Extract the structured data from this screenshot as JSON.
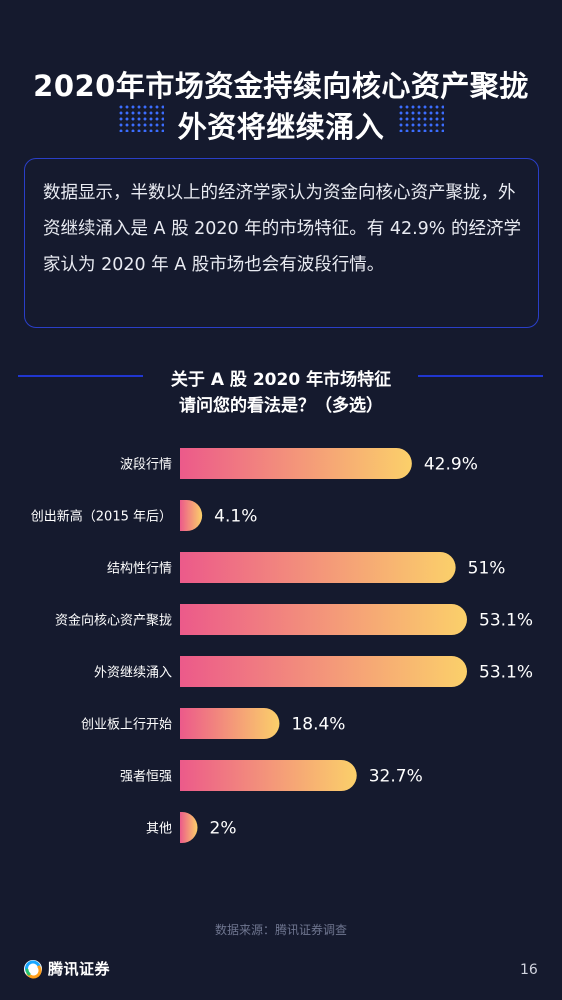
{
  "header": {
    "title_line1": "2020年市场资金持续向核心资产聚拢",
    "title_line2": "外资将继续涌入"
  },
  "intro": {
    "text": "数据显示，半数以上的经济学家认为资金向核心资产聚拢，外资继续涌入是 A 股 2020 年的市场特征。有 42.9% 的经济学家认为 2020 年 A 股市场也会有波段行情。"
  },
  "section": {
    "title_line1": "关于 A 股 2020 年市场特征",
    "title_line2": "请问您的看法是？（多选）"
  },
  "chart_data": {
    "type": "bar",
    "orientation": "horizontal",
    "categories": [
      "波段行情",
      "创出新高（2015 年后）",
      "结构性行情",
      "资金向核心资产聚拢",
      "外资继续涌入",
      "创业板上行开始",
      "强者恒强",
      "其他"
    ],
    "values": [
      42.9,
      4.1,
      51,
      53.1,
      53.1,
      18.4,
      32.7,
      2
    ],
    "value_labels": [
      "42.9%",
      "4.1%",
      "51%",
      "53.1%",
      "53.1%",
      "18.4%",
      "32.7%",
      "2%"
    ],
    "xlim": [
      0,
      53.1
    ],
    "grid": false,
    "colors": {
      "bar_start": "#ec5a8a",
      "bar_end": "#fbd06a"
    }
  },
  "footer": {
    "source": "数据来源：腾讯证券调查",
    "brand": "腾讯证券",
    "page": "16"
  },
  "icons": {
    "brand_logo": "tencent-securities-logo-icon"
  }
}
